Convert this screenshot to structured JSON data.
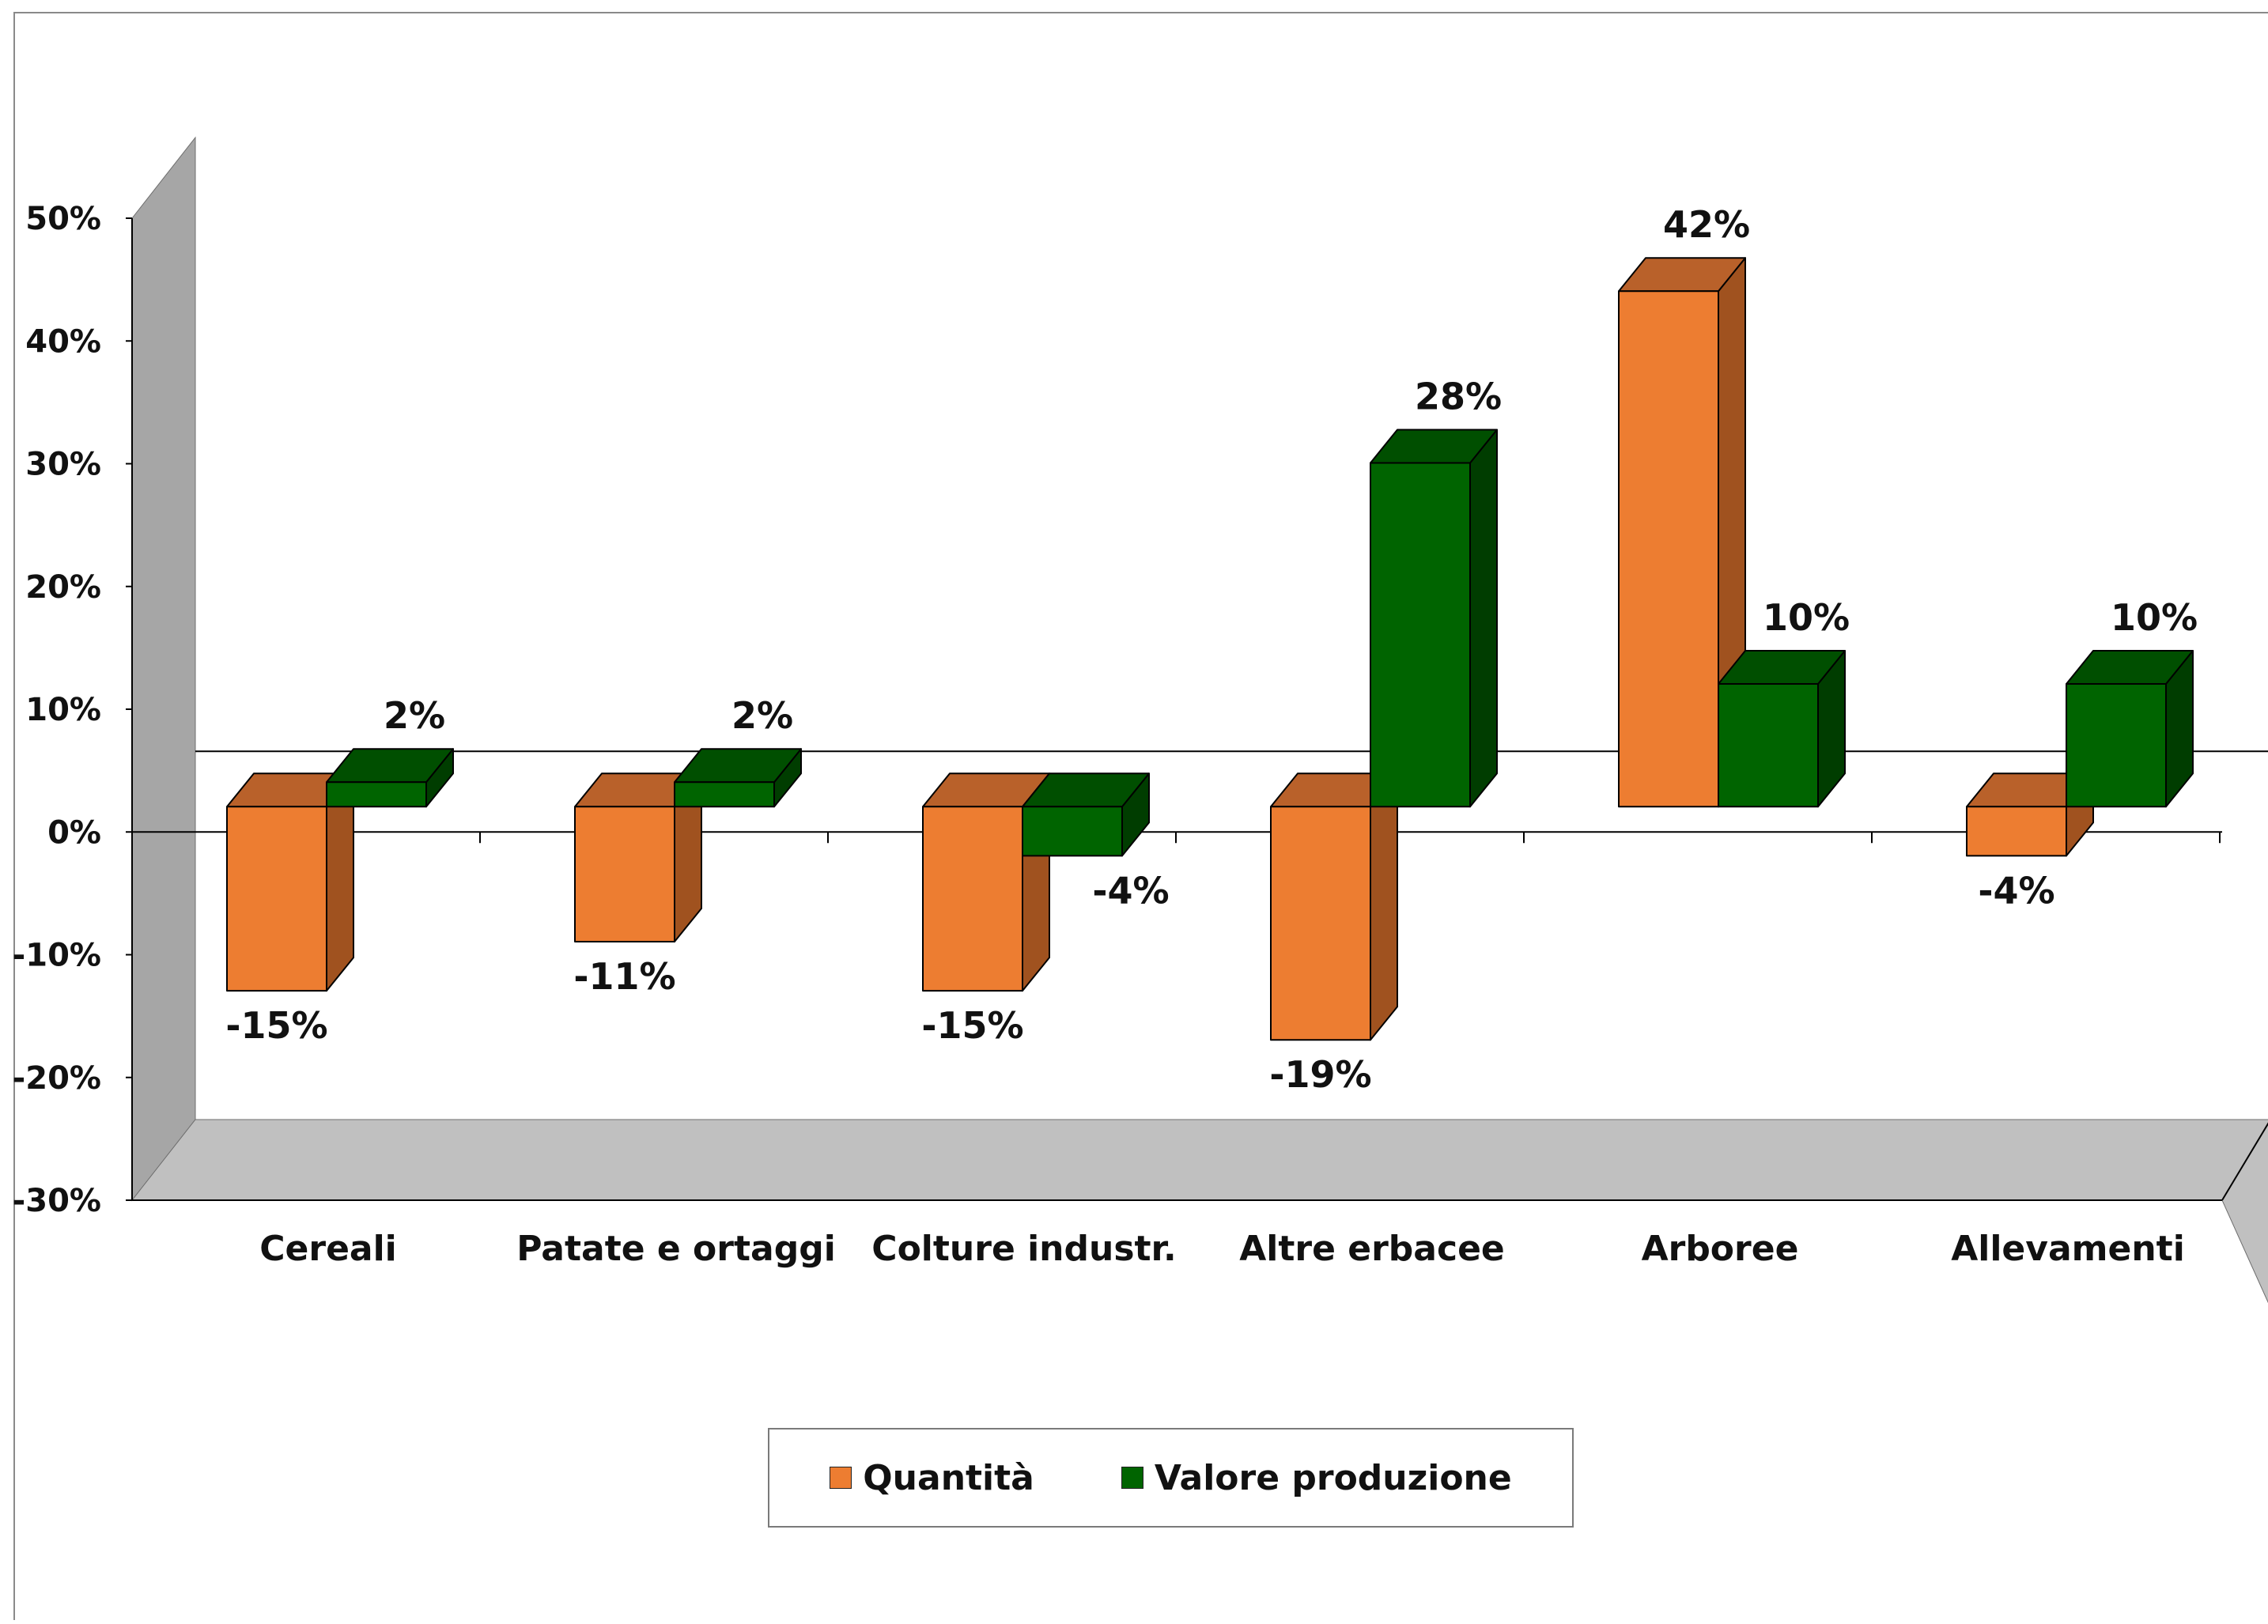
{
  "chart_data": {
    "type": "bar",
    "categories": [
      "Cereali",
      "Patate e ortaggi",
      "Colture industr.",
      "Altre erbacee",
      "Arboree",
      "Allevamenti"
    ],
    "series": [
      {
        "name": "Quantità",
        "color": "#ed7d31",
        "side_color": "#a0521f",
        "top_color": "#b9612a",
        "values": [
          -15,
          -11,
          -15,
          -19,
          42,
          -4
        ],
        "labels": [
          "-15%",
          "-11%",
          "-15%",
          "-19%",
          "42%",
          "-4%"
        ]
      },
      {
        "name": "Valore produzione",
        "color": "#006400",
        "side_color": "#003d00",
        "top_color": "#004f00",
        "values": [
          2,
          2,
          -4,
          28,
          10,
          10
        ],
        "labels": [
          "2%",
          "2%",
          "-4%",
          "28%",
          "10%",
          "10%"
        ]
      }
    ],
    "ylim": [
      -30,
      50
    ],
    "yticks": [
      50,
      40,
      30,
      20,
      10,
      0,
      -10,
      -20,
      -30
    ],
    "ytick_labels": [
      "50%",
      "40%",
      "30%",
      "20%",
      "10%",
      "0%",
      "-10%",
      "-20%",
      "-30%"
    ],
    "legend_position": "bottom",
    "three_d": true,
    "wall_color": "#a6a6a6",
    "floor_color": "#c0c0c0"
  }
}
